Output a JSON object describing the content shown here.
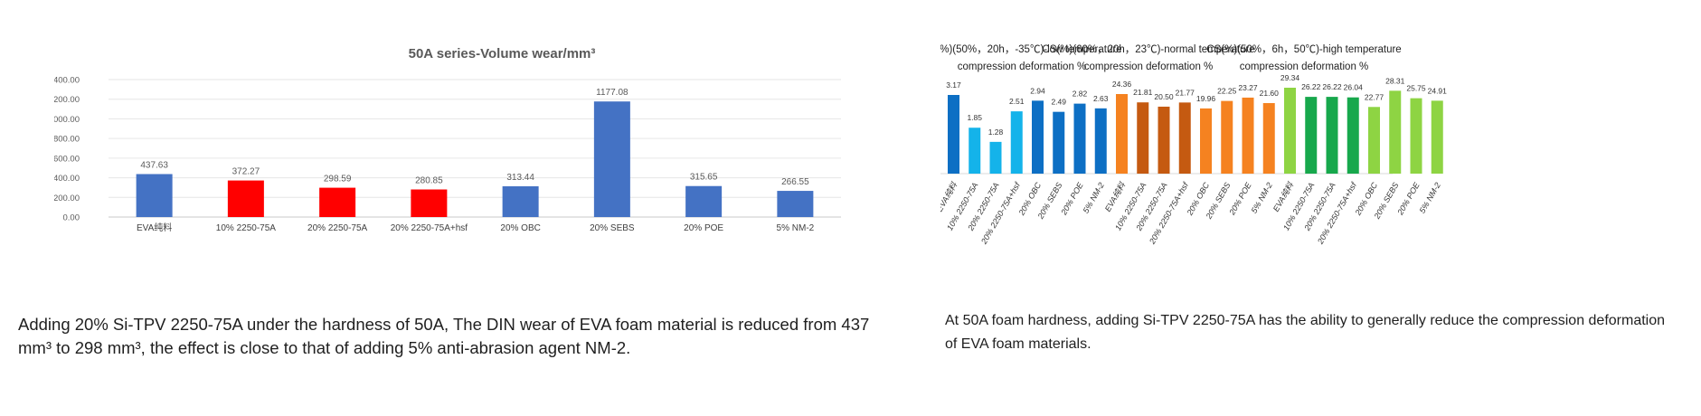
{
  "chart_data": [
    {
      "type": "bar",
      "title": "50A series-Volume wear/mm³",
      "categories": [
        "EVA纯料",
        "10% 2250-75A",
        "20% 2250-75A",
        "20% 2250-75A+hsf",
        "20% OBC",
        "20% SEBS",
        "20% POE",
        "5% NM-2"
      ],
      "values": [
        437.63,
        372.27,
        298.59,
        280.85,
        313.44,
        1177.08,
        315.65,
        266.55
      ],
      "value_labels": [
        "437.63",
        "372.27",
        "298.59",
        "280.85",
        "313.44",
        "1177.08",
        "315.65",
        "266.55"
      ],
      "yticks": [
        "0.00",
        "200.00",
        "400.00",
        "600.00",
        "800.00",
        "1000.00",
        "1200.00",
        "1400.00"
      ],
      "ylim": [
        0,
        1400
      ],
      "colors": [
        "#4472c4",
        "#ff0000",
        "#ff0000",
        "#ff0000",
        "#4472c4",
        "#4472c4",
        "#4472c4",
        "#4472c4"
      ],
      "grid": true
    },
    {
      "type": "bar",
      "groups": [
        {
          "title_lines": [
            "CS(%)(50%，20h，-35℃)-low temperature",
            "compression deformation %"
          ],
          "categories": [
            "EVA纯料",
            "10% 2250-75A",
            "20% 2250-75A",
            "20% 2250-75A+hsf",
            "20% OBC",
            "20% SEBS",
            "20% POE",
            "5% NM-2"
          ],
          "values": [
            3.17,
            1.85,
            1.28,
            2.51,
            2.94,
            2.49,
            2.82,
            2.63
          ],
          "value_labels": [
            "3.17",
            "1.85",
            "1.28",
            "2.51",
            "2.94",
            "2.49",
            "2.82",
            "2.63"
          ],
          "colors": [
            "#0d6fc4",
            "#14b3ea",
            "#14b3ea",
            "#14b3ea",
            "#0d6fc4",
            "#0d6fc4",
            "#0d6fc4",
            "#0d6fc4"
          ]
        },
        {
          "title_lines": [
            "CS(%)(60%，20h，23℃)-normal temperature",
            "compression deformation %"
          ],
          "categories": [
            "EVA纯料",
            "10% 2250-75A",
            "20% 2250-75A",
            "20% 2250-75A+hsf",
            "20% OBC",
            "20% SEBS",
            "20% POE",
            "5% NM-2"
          ],
          "values": [
            24.36,
            21.81,
            20.5,
            21.77,
            19.96,
            22.25,
            23.27,
            21.6
          ],
          "value_labels": [
            "24.36",
            "21.81",
            "20.50",
            "21.77",
            "19.96",
            "22.25",
            "23.27",
            "21.60"
          ],
          "colors": [
            "#f58220",
            "#c55a11",
            "#c55a11",
            "#c55a11",
            "#f58220",
            "#f58220",
            "#f58220",
            "#f58220"
          ]
        },
        {
          "title_lines": [
            "CS(%)(50%，6h，50℃)-high temperature",
            "compression deformation %"
          ],
          "categories": [
            "EVA纯料",
            "10% 2250-75A",
            "20% 2250-75A",
            "20% 2250-75A+hsf",
            "20% OBC",
            "20% SEBS",
            "20% POE",
            "5% NM-2"
          ],
          "values": [
            29.34,
            26.22,
            26.22,
            26.04,
            22.77,
            28.31,
            25.75,
            24.91
          ],
          "value_labels": [
            "29.34",
            "26.22",
            "26.22",
            "26.04",
            "22.77",
            "28.31",
            "25.75",
            "24.91"
          ],
          "colors": [
            "#8ed443",
            "#17a84c",
            "#17a84c",
            "#17a84c",
            "#8ed443",
            "#8ed443",
            "#8ed443",
            "#8ed443"
          ]
        }
      ]
    }
  ],
  "captions": {
    "left": "Adding 20% Si-TPV 2250-75A under the hardness of 50A, The DIN wear of EVA foam material is reduced from 437 mm³ to 298 mm³, the effect is close to that of adding 5% anti-abrasion agent NM-2.",
    "right": "At 50A foam hardness, adding Si-TPV 2250-75A has the ability to generally reduce the compression deformation of EVA foam materials."
  }
}
